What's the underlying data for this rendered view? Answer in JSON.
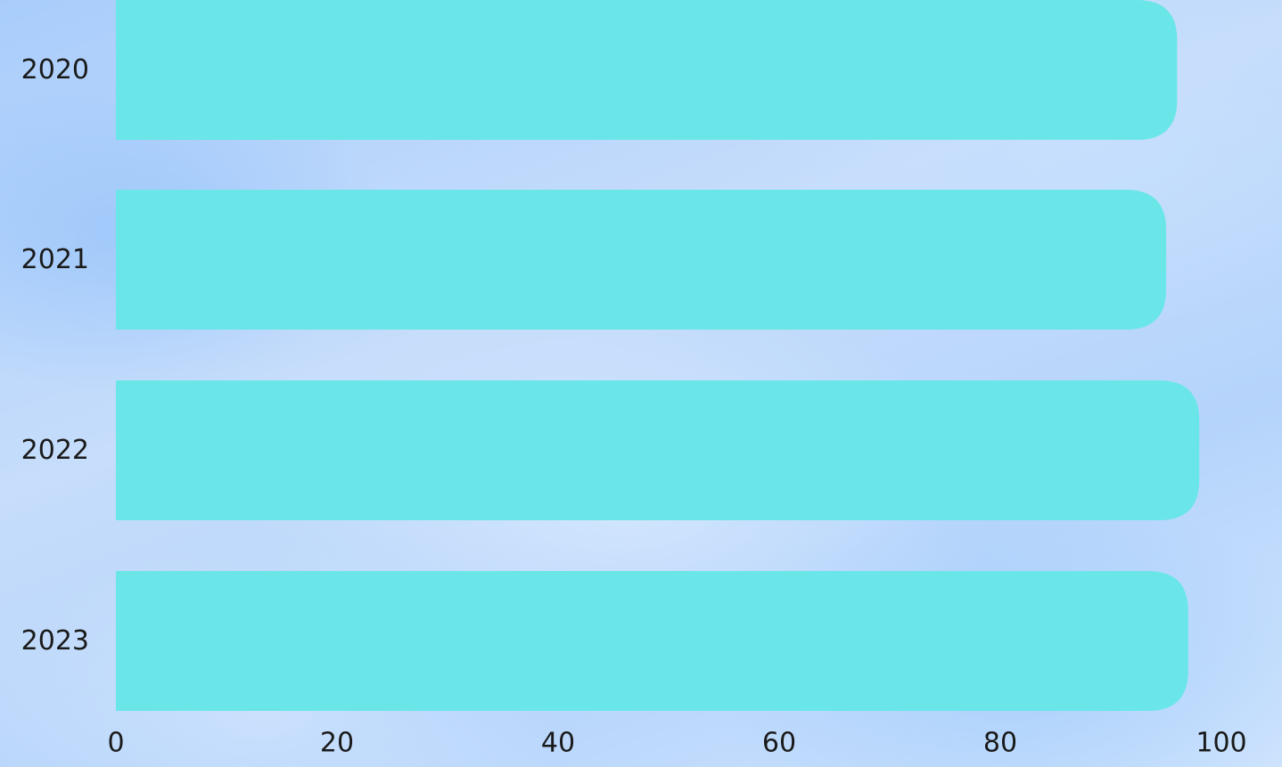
{
  "chart_data": {
    "type": "bar",
    "orientation": "horizontal",
    "categories": [
      "2020",
      "2021",
      "2022",
      "2023"
    ],
    "values": [
      96,
      95,
      98,
      97
    ],
    "xlim": [
      0,
      100
    ],
    "x_ticks": [
      "0",
      "20",
      "40",
      "60",
      "80",
      "100"
    ],
    "title": "",
    "xlabel": "",
    "ylabel": "",
    "grid": false,
    "bar_color": "#6ae6e8",
    "text_color": "#1a1a1a"
  }
}
